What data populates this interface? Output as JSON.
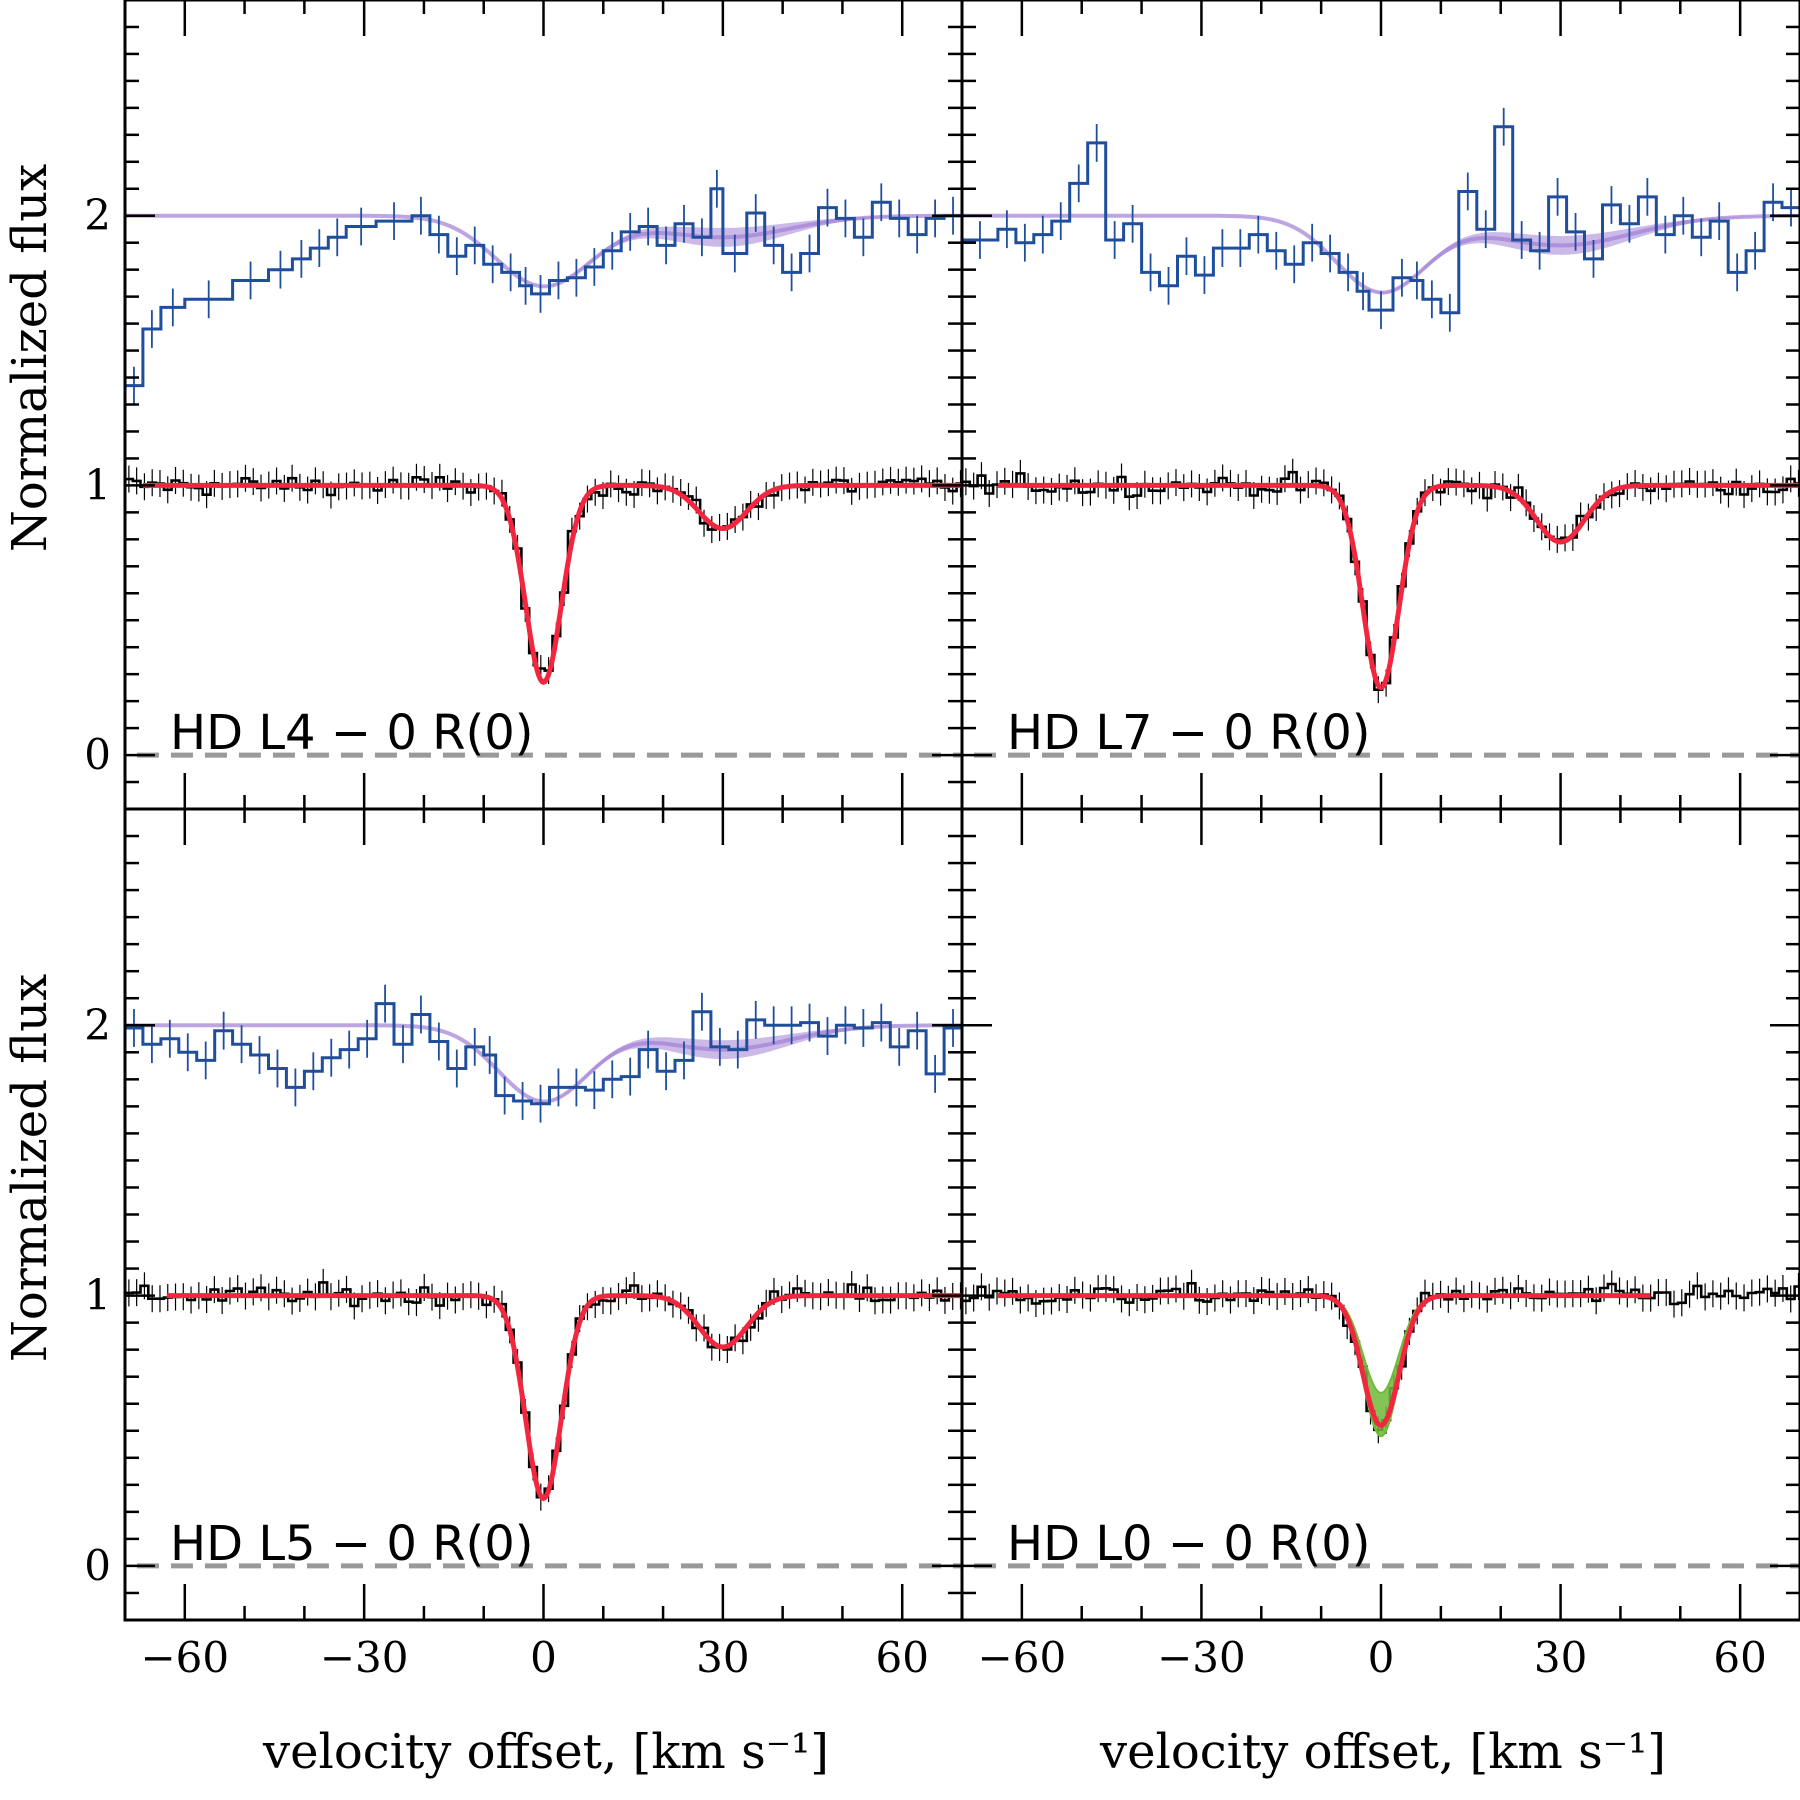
{
  "chart_data": {
    "type": "line",
    "figure": {
      "ylabel": "Normalized flux",
      "xlabel": "velocity offset, [km s⁻¹]",
      "xlim": [
        -70,
        70
      ],
      "ylim": [
        -0.2,
        2.8
      ],
      "xticks": [
        -60,
        -30,
        0,
        30,
        60
      ],
      "yticks": [
        0,
        1,
        2
      ]
    },
    "panels": [
      {
        "label": "HD L4 − 0 R(0)",
        "main_line": {
          "depth": 0.73,
          "center": 0,
          "sigma": 3.0
        },
        "secondary_line": {
          "depth": 0.16,
          "center": 30,
          "sigma": 4.0
        },
        "model_color": "#f2263f",
        "lowres": {
          "offset": 1.0,
          "dip_depth": 0.26,
          "dip_sigma": 8.0,
          "wing_depth": 0.08,
          "wing_center": 30,
          "wing_sigma": 11.0,
          "band_width": 0.035,
          "data_steps": [
            {
              "v": -70,
              "f": 1.37
            },
            {
              "v": -67,
              "f": 1.58
            },
            {
              "v": -64,
              "f": 1.66
            },
            {
              "v": -60,
              "f": 1.69
            },
            {
              "v": -52,
              "f": 1.76
            },
            {
              "v": -46,
              "f": 1.8
            },
            {
              "v": -42,
              "f": 1.84
            },
            {
              "v": -39,
              "f": 1.88
            },
            {
              "v": -36,
              "f": 1.92
            },
            {
              "v": -33,
              "f": 1.96
            },
            {
              "v": -28,
              "f": 1.98
            },
            {
              "v": -22,
              "f": 2.0
            },
            {
              "v": -19,
              "f": 1.93
            },
            {
              "v": -16,
              "f": 1.85
            },
            {
              "v": -13,
              "f": 1.89
            },
            {
              "v": -10,
              "f": 1.82
            },
            {
              "v": -7,
              "f": 1.79
            },
            {
              "v": -4,
              "f": 1.74
            },
            {
              "v": -2,
              "f": 1.71
            },
            {
              "v": 1,
              "f": 1.76
            },
            {
              "v": 4,
              "f": 1.77
            },
            {
              "v": 7,
              "f": 1.81
            },
            {
              "v": 10,
              "f": 1.87
            },
            {
              "v": 13,
              "f": 1.94
            },
            {
              "v": 16,
              "f": 1.96
            },
            {
              "v": 19,
              "f": 1.89
            },
            {
              "v": 22,
              "f": 1.97
            },
            {
              "v": 25,
              "f": 1.92
            },
            {
              "v": 28,
              "f": 2.1
            },
            {
              "v": 30,
              "f": 1.86
            },
            {
              "v": 34,
              "f": 2.01
            },
            {
              "v": 37,
              "f": 1.89
            },
            {
              "v": 40,
              "f": 1.79
            },
            {
              "v": 43,
              "f": 1.86
            },
            {
              "v": 46,
              "f": 2.03
            },
            {
              "v": 49,
              "f": 1.99
            },
            {
              "v": 52,
              "f": 1.92
            },
            {
              "v": 55,
              "f": 2.05
            },
            {
              "v": 58,
              "f": 1.99
            },
            {
              "v": 61,
              "f": 1.93
            },
            {
              "v": 64,
              "f": 1.99
            },
            {
              "v": 67,
              "f": 2.0
            }
          ]
        },
        "model_range": [
          -67,
          70
        ]
      },
      {
        "label": "HD L7 − 0 R(0)",
        "main_line": {
          "depth": 0.75,
          "center": 0,
          "sigma": 3.0
        },
        "secondary_line": {
          "depth": 0.21,
          "center": 30,
          "sigma": 4.0
        },
        "model_color": "#f2263f",
        "lowres": {
          "offset": 1.0,
          "dip_depth": 0.28,
          "dip_sigma": 7.5,
          "wing_depth": 0.11,
          "wing_center": 30,
          "wing_sigma": 12.0,
          "band_width": 0.035,
          "data_steps": [
            {
              "v": -70,
              "f": 1.91
            },
            {
              "v": -64,
              "f": 1.95
            },
            {
              "v": -61,
              "f": 1.9
            },
            {
              "v": -58,
              "f": 1.93
            },
            {
              "v": -55,
              "f": 1.98
            },
            {
              "v": -52,
              "f": 2.12
            },
            {
              "v": -49,
              "f": 2.27
            },
            {
              "v": -46,
              "f": 1.91
            },
            {
              "v": -43,
              "f": 1.97
            },
            {
              "v": -40,
              "f": 1.79
            },
            {
              "v": -37,
              "f": 1.74
            },
            {
              "v": -34,
              "f": 1.85
            },
            {
              "v": -31,
              "f": 1.78
            },
            {
              "v": -28,
              "f": 1.88
            },
            {
              "v": -25,
              "f": 1.88
            },
            {
              "v": -22,
              "f": 1.93
            },
            {
              "v": -19,
              "f": 1.87
            },
            {
              "v": -16,
              "f": 1.82
            },
            {
              "v": -13,
              "f": 1.9
            },
            {
              "v": -10,
              "f": 1.86
            },
            {
              "v": -7,
              "f": 1.79
            },
            {
              "v": -4,
              "f": 1.72
            },
            {
              "v": -2,
              "f": 1.65
            },
            {
              "v": 2,
              "f": 1.77
            },
            {
              "v": 5,
              "f": 1.76
            },
            {
              "v": 7,
              "f": 1.69
            },
            {
              "v": 10,
              "f": 1.64
            },
            {
              "v": 13,
              "f": 2.09
            },
            {
              "v": 16,
              "f": 1.95
            },
            {
              "v": 19,
              "f": 2.33
            },
            {
              "v": 22,
              "f": 1.91
            },
            {
              "v": 25,
              "f": 1.87
            },
            {
              "v": 28,
              "f": 2.07
            },
            {
              "v": 31,
              "f": 1.94
            },
            {
              "v": 34,
              "f": 1.84
            },
            {
              "v": 37,
              "f": 2.04
            },
            {
              "v": 40,
              "f": 1.97
            },
            {
              "v": 43,
              "f": 2.07
            },
            {
              "v": 46,
              "f": 1.93
            },
            {
              "v": 49,
              "f": 2.0
            },
            {
              "v": 52,
              "f": 1.92
            },
            {
              "v": 55,
              "f": 1.98
            },
            {
              "v": 58,
              "f": 1.79
            },
            {
              "v": 61,
              "f": 1.87
            },
            {
              "v": 64,
              "f": 2.05
            },
            {
              "v": 67,
              "f": 2.03
            }
          ]
        },
        "model_range": [
          -64,
          70
        ]
      },
      {
        "label": "HD L5 − 0 R(0)",
        "main_line": {
          "depth": 0.75,
          "center": 0,
          "sigma": 3.0
        },
        "secondary_line": {
          "depth": 0.19,
          "center": 30,
          "sigma": 4.0
        },
        "model_color": "#f2263f",
        "lowres": {
          "offset": 1.0,
          "dip_depth": 0.28,
          "dip_sigma": 7.5,
          "wing_depth": 0.09,
          "wing_center": 30,
          "wing_sigma": 11.0,
          "band_width": 0.035,
          "data_steps": [
            {
              "v": -70,
              "f": 1.99
            },
            {
              "v": -67,
              "f": 1.93
            },
            {
              "v": -64,
              "f": 1.95
            },
            {
              "v": -61,
              "f": 1.9
            },
            {
              "v": -58,
              "f": 1.87
            },
            {
              "v": -55,
              "f": 1.98
            },
            {
              "v": -52,
              "f": 1.93
            },
            {
              "v": -49,
              "f": 1.89
            },
            {
              "v": -46,
              "f": 1.84
            },
            {
              "v": -43,
              "f": 1.77
            },
            {
              "v": -40,
              "f": 1.83
            },
            {
              "v": -37,
              "f": 1.88
            },
            {
              "v": -34,
              "f": 1.91
            },
            {
              "v": -31,
              "f": 1.95
            },
            {
              "v": -28,
              "f": 2.08
            },
            {
              "v": -25,
              "f": 1.93
            },
            {
              "v": -22,
              "f": 2.04
            },
            {
              "v": -19,
              "f": 1.94
            },
            {
              "v": -16,
              "f": 1.84
            },
            {
              "v": -13,
              "f": 1.92
            },
            {
              "v": -10,
              "f": 1.89
            },
            {
              "v": -8,
              "f": 1.74
            },
            {
              "v": -5,
              "f": 1.72
            },
            {
              "v": -2,
              "f": 1.71
            },
            {
              "v": 1,
              "f": 1.77
            },
            {
              "v": 4,
              "f": 1.77
            },
            {
              "v": 7,
              "f": 1.76
            },
            {
              "v": 10,
              "f": 1.8
            },
            {
              "v": 13,
              "f": 1.81
            },
            {
              "v": 16,
              "f": 1.91
            },
            {
              "v": 19,
              "f": 1.83
            },
            {
              "v": 22,
              "f": 1.87
            },
            {
              "v": 25,
              "f": 2.05
            },
            {
              "v": 28,
              "f": 1.92
            },
            {
              "v": 31,
              "f": 1.91
            },
            {
              "v": 34,
              "f": 2.02
            },
            {
              "v": 37,
              "f": 2.0
            },
            {
              "v": 40,
              "f": 2.0
            },
            {
              "v": 43,
              "f": 2.01
            },
            {
              "v": 46,
              "f": 1.96
            },
            {
              "v": 49,
              "f": 2.0
            },
            {
              "v": 52,
              "f": 1.99
            },
            {
              "v": 55,
              "f": 2.01
            },
            {
              "v": 58,
              "f": 1.92
            },
            {
              "v": 61,
              "f": 1.98
            },
            {
              "v": 64,
              "f": 1.82
            },
            {
              "v": 67,
              "f": 1.99
            }
          ]
        },
        "model_range": [
          -63,
          70
        ]
      },
      {
        "label": "HD L0 − 0 R(0)",
        "main_line": {
          "depth": 0.48,
          "center": 0,
          "sigma": 3.0
        },
        "secondary_line": {
          "depth": 0.0,
          "center": 30,
          "sigma": 4.0
        },
        "model_color": "#f2263f",
        "green_band": {
          "depth_low": 0.36,
          "depth_high": 0.52,
          "color": "#6fba3a"
        },
        "lowres": null,
        "model_range": [
          -64,
          45
        ]
      }
    ],
    "colors": {
      "hires_data": "#000000",
      "lowres_data": "#1f4e9c",
      "lowres_model": "#a17fd6",
      "model": "#f2263f",
      "zero_line": "#999999"
    }
  }
}
